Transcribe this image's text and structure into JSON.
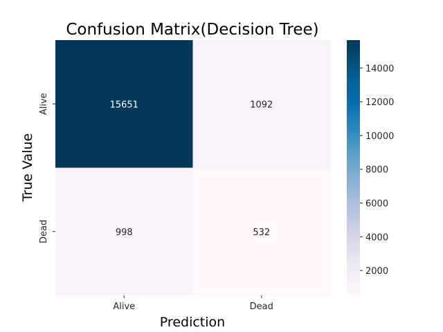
{
  "chart_data": {
    "type": "heatmap",
    "title": "Confusion Matrix(Decision Tree)",
    "xlabel": "Prediction",
    "ylabel": "True Value",
    "x_categories": [
      "Alive",
      "Dead"
    ],
    "y_categories": [
      "Alive",
      "Dead"
    ],
    "values": [
      [
        15651,
        1092
      ],
      [
        998,
        532
      ]
    ],
    "colormap": "PuBu",
    "color_range": [
      532,
      15651
    ],
    "colorbar": {
      "ticks": [
        2000,
        4000,
        6000,
        8000,
        10000,
        12000,
        14000
      ],
      "position": "right"
    },
    "colors": {
      "low": "#fff7fb",
      "high": "#023858"
    }
  }
}
